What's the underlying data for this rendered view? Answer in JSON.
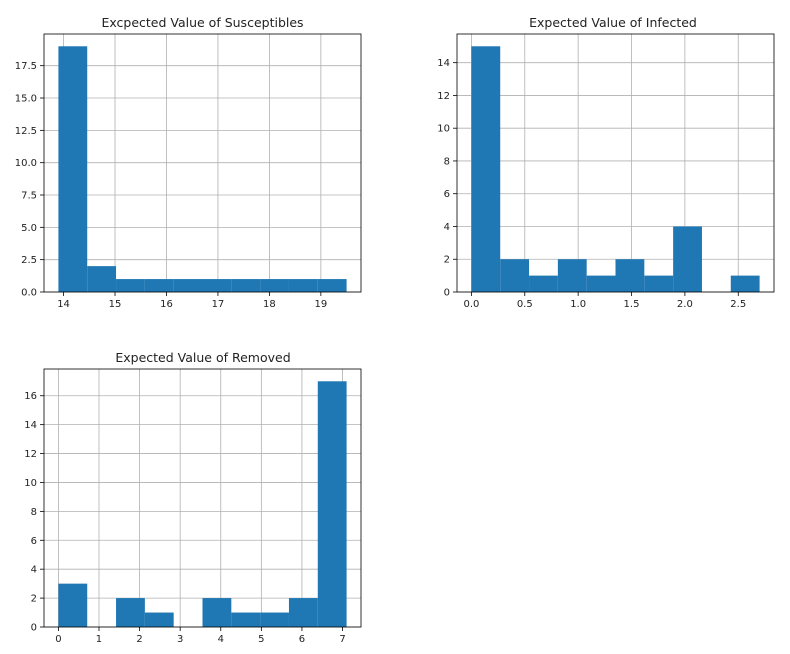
{
  "chart_data": [
    {
      "type": "bar",
      "title": "Excpected Value of Susceptibles",
      "xlabel": "",
      "ylabel": "",
      "bins": [
        [
          13.9,
          14.46
        ],
        [
          14.46,
          15.02
        ],
        [
          15.02,
          15.58
        ],
        [
          15.58,
          16.14
        ],
        [
          16.14,
          16.7
        ],
        [
          16.7,
          17.26
        ],
        [
          17.26,
          17.82
        ],
        [
          17.82,
          18.38
        ],
        [
          18.38,
          18.94
        ],
        [
          18.94,
          19.5
        ]
      ],
      "values": [
        19,
        2,
        1,
        1,
        1,
        1,
        1,
        1,
        1,
        1
      ],
      "xlim": [
        13.62,
        19.78
      ],
      "ylim": [
        0,
        19.95
      ],
      "xticks": [
        14,
        15,
        16,
        17,
        18,
        19
      ],
      "xtick_labels": [
        "14",
        "15",
        "16",
        "17",
        "18",
        "19"
      ],
      "yticks": [
        0,
        2.5,
        5,
        7.5,
        10,
        12.5,
        15,
        17.5
      ],
      "ytick_labels": [
        "0.0",
        "2.5",
        "5.0",
        "7.5",
        "10.0",
        "12.5",
        "15.0",
        "17.5"
      ],
      "grid": true,
      "bar_color": "#1f77b4"
    },
    {
      "type": "bar",
      "title": "Expected Value of Infected",
      "xlabel": "",
      "ylabel": "",
      "bins": [
        [
          0,
          0.27
        ],
        [
          0.27,
          0.54
        ],
        [
          0.54,
          0.81
        ],
        [
          0.81,
          1.08
        ],
        [
          1.08,
          1.35
        ],
        [
          1.35,
          1.62
        ],
        [
          1.62,
          1.89
        ],
        [
          1.89,
          2.16
        ],
        [
          2.16,
          2.43
        ],
        [
          2.43,
          2.7
        ]
      ],
      "values": [
        15,
        2,
        1,
        2,
        1,
        2,
        1,
        4,
        0,
        1
      ],
      "xlim": [
        -0.135,
        2.835
      ],
      "ylim": [
        0,
        15.75
      ],
      "xticks": [
        0,
        0.5,
        1,
        1.5,
        2,
        2.5
      ],
      "xtick_labels": [
        "0.0",
        "0.5",
        "1.0",
        "1.5",
        "2.0",
        "2.5"
      ],
      "yticks": [
        0,
        2,
        4,
        6,
        8,
        10,
        12,
        14
      ],
      "ytick_labels": [
        "0",
        "2",
        "4",
        "6",
        "8",
        "10",
        "12",
        "14"
      ],
      "grid": true,
      "bar_color": "#1f77b4"
    },
    {
      "type": "bar",
      "title": "Expected Value of Removed",
      "xlabel": "",
      "ylabel": "",
      "bins": [
        [
          0,
          0.71
        ],
        [
          0.71,
          1.42
        ],
        [
          1.42,
          2.13
        ],
        [
          2.13,
          2.84
        ],
        [
          2.84,
          3.55
        ],
        [
          3.55,
          4.26
        ],
        [
          4.26,
          4.97
        ],
        [
          4.97,
          5.68
        ],
        [
          5.68,
          6.39
        ],
        [
          6.39,
          7.1
        ]
      ],
      "values": [
        3,
        0,
        2,
        1,
        0,
        2,
        1,
        1,
        2,
        17
      ],
      "xlim": [
        -0.355,
        7.455
      ],
      "ylim": [
        0,
        17.85
      ],
      "xticks": [
        0,
        1,
        2,
        3,
        4,
        5,
        6,
        7
      ],
      "xtick_labels": [
        "0",
        "1",
        "2",
        "3",
        "4",
        "5",
        "6",
        "7"
      ],
      "yticks": [
        0,
        2,
        4,
        6,
        8,
        10,
        12,
        14,
        16
      ],
      "ytick_labels": [
        "0",
        "2",
        "4",
        "6",
        "8",
        "10",
        "12",
        "14",
        "16"
      ],
      "grid": true,
      "bar_color": "#1f77b4"
    }
  ]
}
